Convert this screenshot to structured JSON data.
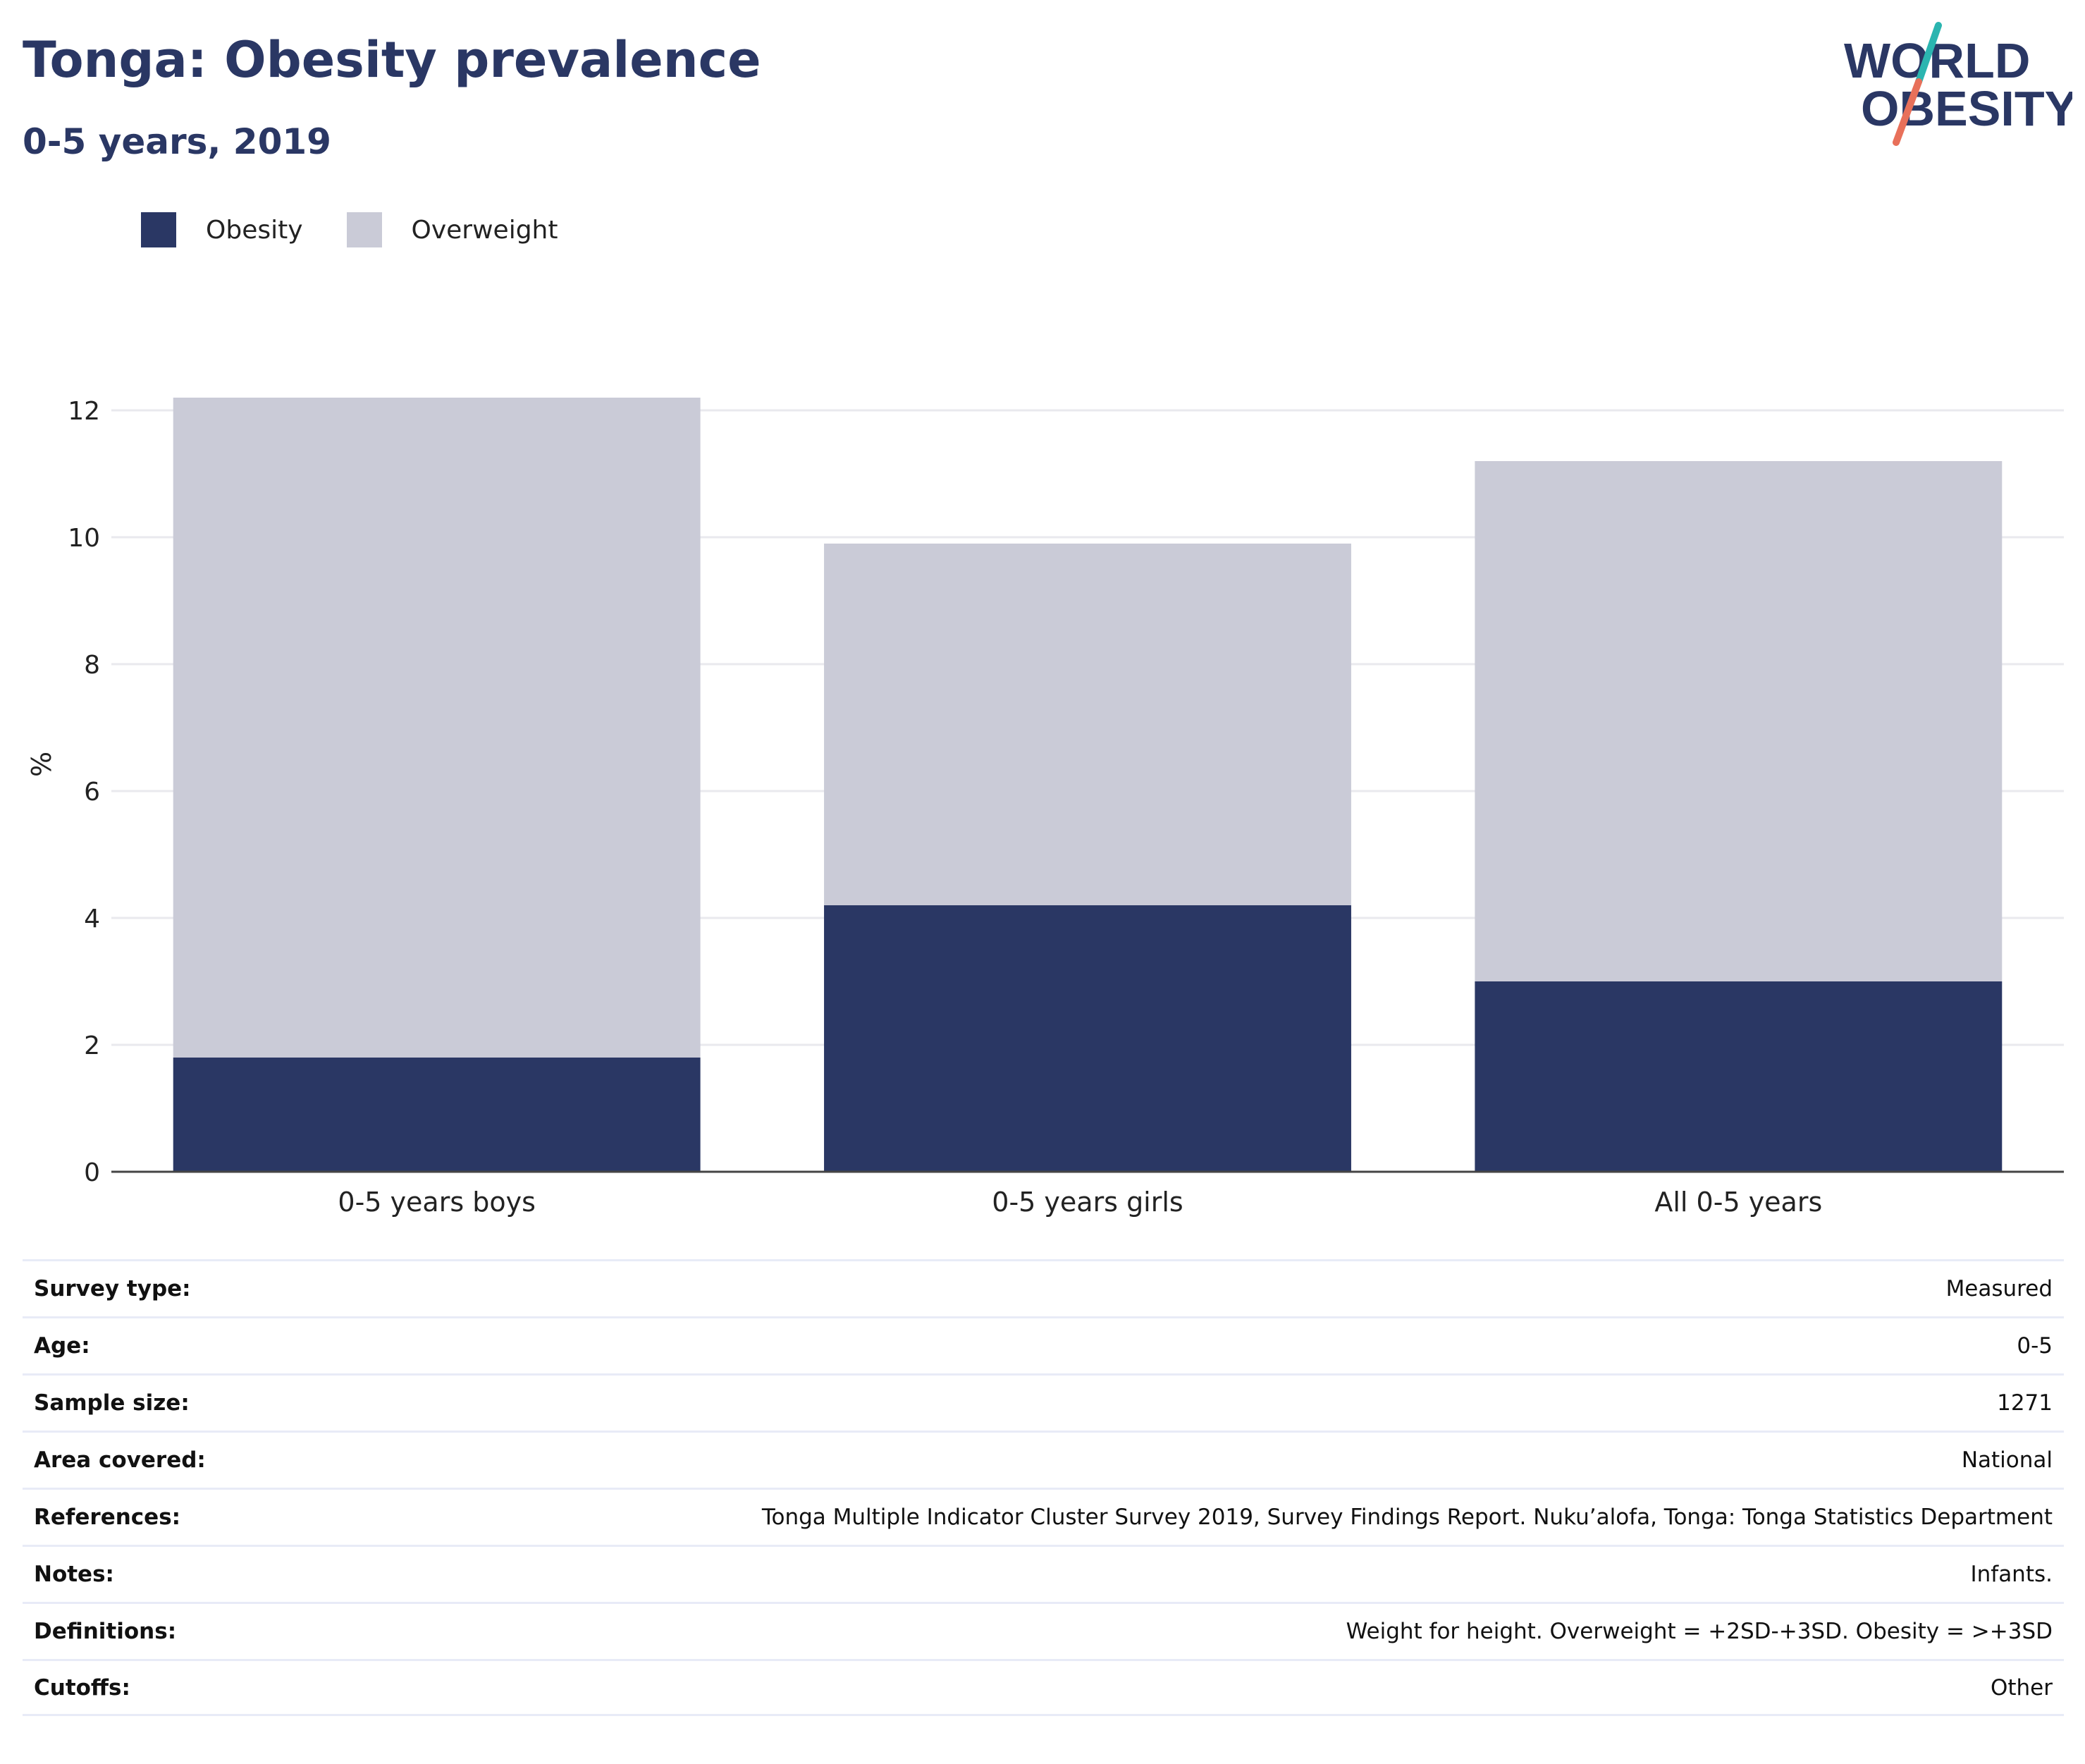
{
  "header": {
    "title": "Tonga: Obesity prevalence",
    "subtitle": "0-5 years, 2019"
  },
  "logo": {
    "line1": "WORLD",
    "line2": "OBESITY",
    "color": "#2a3764",
    "slash_top_color": "#2bb5b0",
    "slash_bottom_color": "#e8705a"
  },
  "colors": {
    "obesity": "#2a3764",
    "overweight": "#cacbd7",
    "grid": "#e9e9ee",
    "axis": "#444444"
  },
  "chart_data": {
    "type": "bar",
    "stacked": true,
    "categories": [
      "0-5 years boys",
      "0-5 years girls",
      "All 0-5 years"
    ],
    "series": [
      {
        "name": "Obesity",
        "values": [
          1.8,
          4.2,
          3.0
        ]
      },
      {
        "name": "Overweight",
        "values": [
          10.4,
          5.7,
          8.2
        ]
      }
    ],
    "ylabel": "%",
    "ylim": [
      0,
      13
    ],
    "yticks": [
      0,
      2,
      4,
      6,
      8,
      10,
      12
    ],
    "grid": true,
    "legend_position": "top-left"
  },
  "metadata": [
    {
      "key": "Survey type:",
      "value": "Measured"
    },
    {
      "key": "Age:",
      "value": "0-5"
    },
    {
      "key": "Sample size:",
      "value": "1271"
    },
    {
      "key": "Area covered:",
      "value": "National"
    },
    {
      "key": "References:",
      "value": "Tonga Multiple Indicator Cluster Survey 2019, Survey Findings Report. Nuku’alofa, Tonga: Tonga Statistics Department"
    },
    {
      "key": "Notes:",
      "value": "Infants."
    },
    {
      "key": "Definitions:",
      "value": "Weight for height. Overweight = +2SD-+3SD. Obesity = >+3SD"
    },
    {
      "key": "Cutoffs:",
      "value": "Other"
    }
  ]
}
